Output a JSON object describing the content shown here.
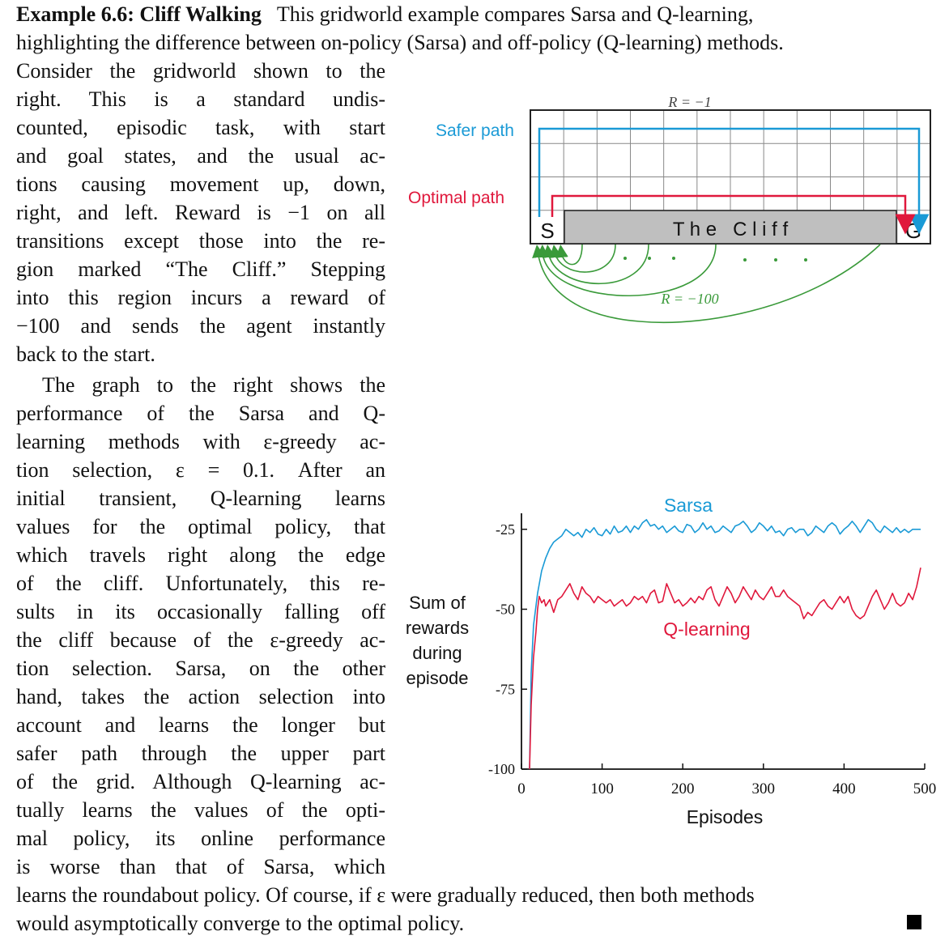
{
  "example": {
    "heading": "Example 6.6: Cliff Walking",
    "intro_rest": "This gridworld example compares Sarsa and Q-learning,",
    "line2": "highlighting the difference between on-policy (Sarsa) and off-policy (Q-learning) methods."
  },
  "column": {
    "lines": [
      "Consider the gridworld shown to the",
      "right. This is a standard undis-",
      "counted, episodic task, with start",
      "and goal states, and the usual ac-",
      "tions causing movement up, down,",
      "right, and left. Reward is −1 on all",
      "transitions except those into the re-",
      "gion marked “The Cliff.” Stepping",
      "into this region incurs a reward of",
      "−100 and sends the agent instantly",
      "back to the start."
    ],
    "lines2": [
      "The graph to the right shows the",
      "performance of the Sarsa and Q-",
      "learning methods with ε-greedy ac-",
      "tion selection, ε = 0.1. After an",
      "initial transient, Q-learning learns",
      "values for the optimal policy, that",
      "which travels right along the edge",
      "of the cliff. Unfortunately, this re-",
      "sults in its occasionally falling off",
      "the cliff because of the ε-greedy ac-",
      "tion selection. Sarsa, on the other",
      "hand, takes the action selection into",
      "account and learns the longer but",
      "safer path through the upper part",
      "of the grid. Although Q-learning ac-",
      "tually learns the values of the opti-",
      "mal policy, its online performance",
      "is worse than that of Sarsa, which"
    ]
  },
  "footer": {
    "line1": "learns the roundabout policy. Of course, if ε were gradually reduced, then both methods",
    "line2": "would asymptotically converge to the optimal policy."
  },
  "gridworld": {
    "reward_top": "R = −1",
    "reward_cliff": "R = −100",
    "safer_label": "Safer path",
    "optimal_label": "Optimal path",
    "start": "S",
    "goal": "G",
    "cliff": "T h e   C l i f f",
    "colors": {
      "safer": "#1a9ad6",
      "optimal": "#e0183c",
      "fall": "#3a9a3a",
      "cliff": "#bfbfbf"
    }
  },
  "chart_data": {
    "type": "line",
    "xlabel": "Episodes",
    "ylabel_lines": [
      "Sum of",
      "rewards",
      "during",
      "episode"
    ],
    "xlim": [
      0,
      500
    ],
    "ylim": [
      -100,
      -20
    ],
    "xticks": [
      "0",
      "100",
      "200",
      "300",
      "400",
      "500"
    ],
    "yticks": [
      "-25",
      "-50",
      "-75",
      "-100"
    ],
    "series": [
      {
        "name": "Sarsa",
        "color": "#1a9ad6",
        "points": [
          [
            10,
            -100
          ],
          [
            12,
            -70
          ],
          [
            15,
            -55
          ],
          [
            20,
            -45
          ],
          [
            25,
            -38
          ],
          [
            30,
            -34
          ],
          [
            35,
            -31
          ],
          [
            40,
            -29
          ],
          [
            45,
            -28
          ],
          [
            50,
            -27
          ],
          [
            55,
            -25
          ],
          [
            60,
            -26
          ],
          [
            65,
            -27
          ],
          [
            70,
            -26
          ],
          [
            75,
            -27.5
          ],
          [
            80,
            -25
          ],
          [
            85,
            -26
          ],
          [
            90,
            -24.5
          ],
          [
            95,
            -26.5
          ],
          [
            100,
            -27
          ],
          [
            105,
            -25
          ],
          [
            110,
            -26.5
          ],
          [
            115,
            -24
          ],
          [
            120,
            -26
          ],
          [
            125,
            -25.5
          ],
          [
            130,
            -24
          ],
          [
            135,
            -26
          ],
          [
            140,
            -24
          ],
          [
            145,
            -25
          ],
          [
            150,
            -23
          ],
          [
            155,
            -22
          ],
          [
            160,
            -24
          ],
          [
            165,
            -23.5
          ],
          [
            170,
            -25
          ],
          [
            175,
            -24
          ],
          [
            180,
            -26
          ],
          [
            185,
            -25
          ],
          [
            190,
            -24
          ],
          [
            195,
            -25.5
          ],
          [
            200,
            -26
          ],
          [
            205,
            -23.5
          ],
          [
            210,
            -24
          ],
          [
            215,
            -26
          ],
          [
            220,
            -25
          ],
          [
            225,
            -23
          ],
          [
            230,
            -25
          ],
          [
            235,
            -24
          ],
          [
            240,
            -26
          ],
          [
            245,
            -25.5
          ],
          [
            250,
            -24
          ],
          [
            255,
            -25
          ],
          [
            260,
            -26
          ],
          [
            265,
            -24
          ],
          [
            270,
            -23.5
          ],
          [
            275,
            -22.5
          ],
          [
            280,
            -24
          ],
          [
            285,
            -26
          ],
          [
            290,
            -25
          ],
          [
            295,
            -23
          ],
          [
            300,
            -24
          ],
          [
            305,
            -25.5
          ],
          [
            310,
            -24
          ],
          [
            315,
            -26
          ],
          [
            320,
            -25.5
          ],
          [
            325,
            -27
          ],
          [
            330,
            -25
          ],
          [
            335,
            -24.5
          ],
          [
            340,
            -26
          ],
          [
            345,
            -25
          ],
          [
            350,
            -25
          ],
          [
            355,
            -27
          ],
          [
            360,
            -26
          ],
          [
            365,
            -24
          ],
          [
            370,
            -25
          ],
          [
            375,
            -26
          ],
          [
            380,
            -24
          ],
          [
            385,
            -23
          ],
          [
            390,
            -24
          ],
          [
            395,
            -26.5
          ],
          [
            400,
            -25
          ],
          [
            405,
            -24
          ],
          [
            410,
            -22.5
          ],
          [
            415,
            -24
          ],
          [
            420,
            -26
          ],
          [
            425,
            -24
          ],
          [
            430,
            -22
          ],
          [
            435,
            -23
          ],
          [
            440,
            -25
          ],
          [
            445,
            -26
          ],
          [
            450,
            -24
          ],
          [
            455,
            -25
          ],
          [
            460,
            -26
          ],
          [
            465,
            -24.5
          ],
          [
            470,
            -26
          ],
          [
            475,
            -25
          ],
          [
            480,
            -26
          ],
          [
            485,
            -25
          ],
          [
            490,
            -25
          ],
          [
            495,
            -25
          ]
        ]
      },
      {
        "name": "Q-learning",
        "color": "#e0183c",
        "points": [
          [
            10,
            -100
          ],
          [
            12,
            -80
          ],
          [
            15,
            -65
          ],
          [
            18,
            -57
          ],
          [
            20,
            -50
          ],
          [
            22,
            -46
          ],
          [
            25,
            -48
          ],
          [
            28,
            -47
          ],
          [
            30,
            -49
          ],
          [
            35,
            -47
          ],
          [
            40,
            -51
          ],
          [
            45,
            -47
          ],
          [
            50,
            -46
          ],
          [
            55,
            -44
          ],
          [
            60,
            -42
          ],
          [
            65,
            -45
          ],
          [
            70,
            -47
          ],
          [
            75,
            -43
          ],
          [
            80,
            -45
          ],
          [
            85,
            -46
          ],
          [
            90,
            -48
          ],
          [
            95,
            -46
          ],
          [
            100,
            -47
          ],
          [
            105,
            -48
          ],
          [
            110,
            -47
          ],
          [
            115,
            -49
          ],
          [
            120,
            -48
          ],
          [
            125,
            -47
          ],
          [
            130,
            -49
          ],
          [
            135,
            -48
          ],
          [
            140,
            -46
          ],
          [
            145,
            -47
          ],
          [
            150,
            -46
          ],
          [
            155,
            -48
          ],
          [
            160,
            -45
          ],
          [
            165,
            -44
          ],
          [
            170,
            -48
          ],
          [
            175,
            -47.5
          ],
          [
            180,
            -42
          ],
          [
            185,
            -45
          ],
          [
            190,
            -48
          ],
          [
            195,
            -47
          ],
          [
            200,
            -49
          ],
          [
            205,
            -48
          ],
          [
            210,
            -46.5
          ],
          [
            215,
            -48
          ],
          [
            220,
            -46
          ],
          [
            225,
            -47
          ],
          [
            230,
            -44
          ],
          [
            235,
            -43
          ],
          [
            240,
            -47
          ],
          [
            245,
            -49
          ],
          [
            250,
            -46
          ],
          [
            255,
            -43
          ],
          [
            260,
            -45
          ],
          [
            265,
            -48
          ],
          [
            270,
            -46
          ],
          [
            275,
            -43
          ],
          [
            280,
            -45
          ],
          [
            285,
            -47
          ],
          [
            290,
            -44
          ],
          [
            295,
            -46
          ],
          [
            300,
            -47
          ],
          [
            305,
            -45
          ],
          [
            310,
            -43
          ],
          [
            315,
            -46
          ],
          [
            320,
            -46
          ],
          [
            325,
            -44
          ],
          [
            330,
            -46
          ],
          [
            335,
            -47
          ],
          [
            340,
            -48
          ],
          [
            345,
            -49
          ],
          [
            350,
            -53
          ],
          [
            355,
            -51
          ],
          [
            360,
            -52
          ],
          [
            365,
            -50
          ],
          [
            370,
            -48
          ],
          [
            375,
            -47
          ],
          [
            380,
            -49
          ],
          [
            385,
            -50
          ],
          [
            390,
            -48
          ],
          [
            395,
            -46
          ],
          [
            400,
            -48
          ],
          [
            405,
            -46
          ],
          [
            410,
            -50
          ],
          [
            415,
            -52
          ],
          [
            420,
            -53
          ],
          [
            425,
            -52
          ],
          [
            430,
            -49
          ],
          [
            435,
            -46
          ],
          [
            440,
            -44
          ],
          [
            445,
            -47
          ],
          [
            450,
            -50
          ],
          [
            455,
            -48
          ],
          [
            460,
            -45
          ],
          [
            465,
            -48
          ],
          [
            470,
            -49
          ],
          [
            475,
            -48
          ],
          [
            480,
            -45
          ],
          [
            485,
            -47
          ],
          [
            490,
            -43
          ],
          [
            495,
            -37
          ]
        ]
      }
    ]
  }
}
